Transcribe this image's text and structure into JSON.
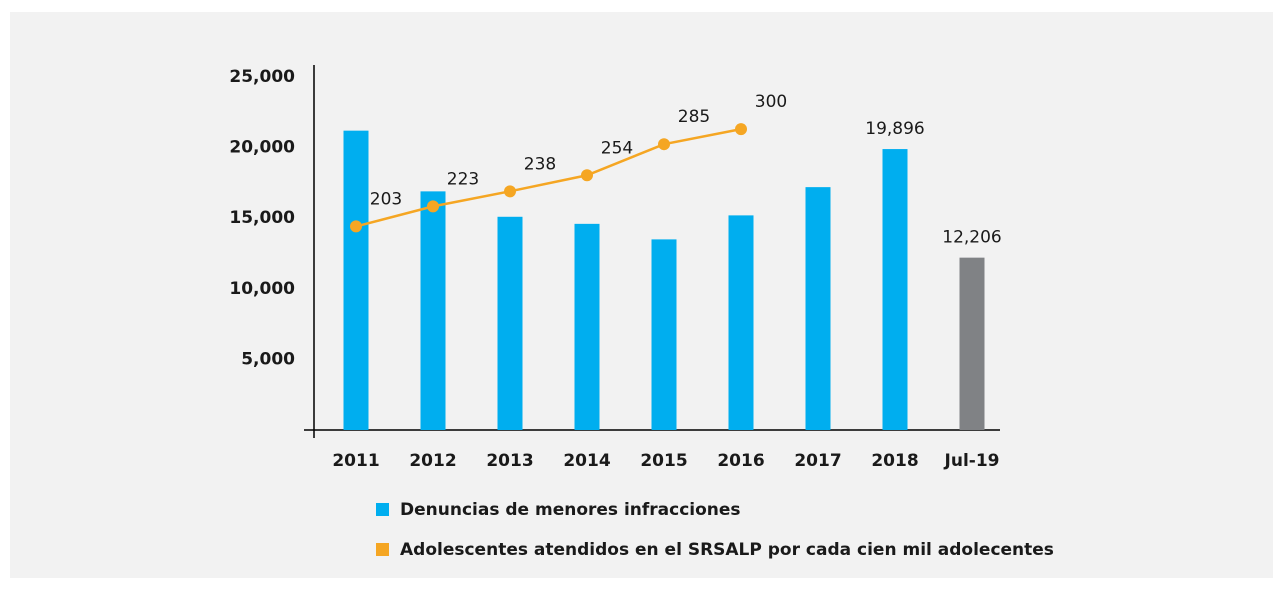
{
  "chart_data": {
    "type": "bar_line",
    "categories": [
      "2011",
      "2012",
      "2013",
      "2014",
      "2015",
      "2016",
      "2017",
      "2018",
      "Jul-19"
    ],
    "series": [
      {
        "name": "Denuncias de menores infracciones",
        "type": "bar",
        "color": "#00aeef",
        "colors": [
          "#00aeef",
          "#00aeef",
          "#00aeef",
          "#00aeef",
          "#00aeef",
          "#00aeef",
          "#00aeef",
          "#00aeef",
          "#808285"
        ],
        "values": [
          21200,
          16900,
          15100,
          14600,
          13500,
          15200,
          17200,
          19896,
          12206
        ],
        "value_labels": [
          null,
          null,
          null,
          null,
          null,
          null,
          null,
          "19,896",
          "12,206"
        ]
      },
      {
        "name": "Adolescentes atendidos en el SRSALP por cada cien mil adolecentes",
        "type": "line",
        "axis": "y2",
        "color": "#f5a623",
        "data_labels": true,
        "values": [
          203,
          223,
          238,
          254,
          285,
          300,
          null,
          null,
          null
        ]
      }
    ],
    "ylim": [
      0,
      25000
    ],
    "yticks": [
      {
        "value": 5000,
        "label": "5,000"
      },
      {
        "value": 10000,
        "label": "10,000"
      },
      {
        "value": 15000,
        "label": "15,000"
      },
      {
        "value": 20000,
        "label": "20,000"
      },
      {
        "value": 25000,
        "label": "25,000"
      }
    ],
    "y2lim": [
      0,
      352
    ],
    "grid": false
  }
}
